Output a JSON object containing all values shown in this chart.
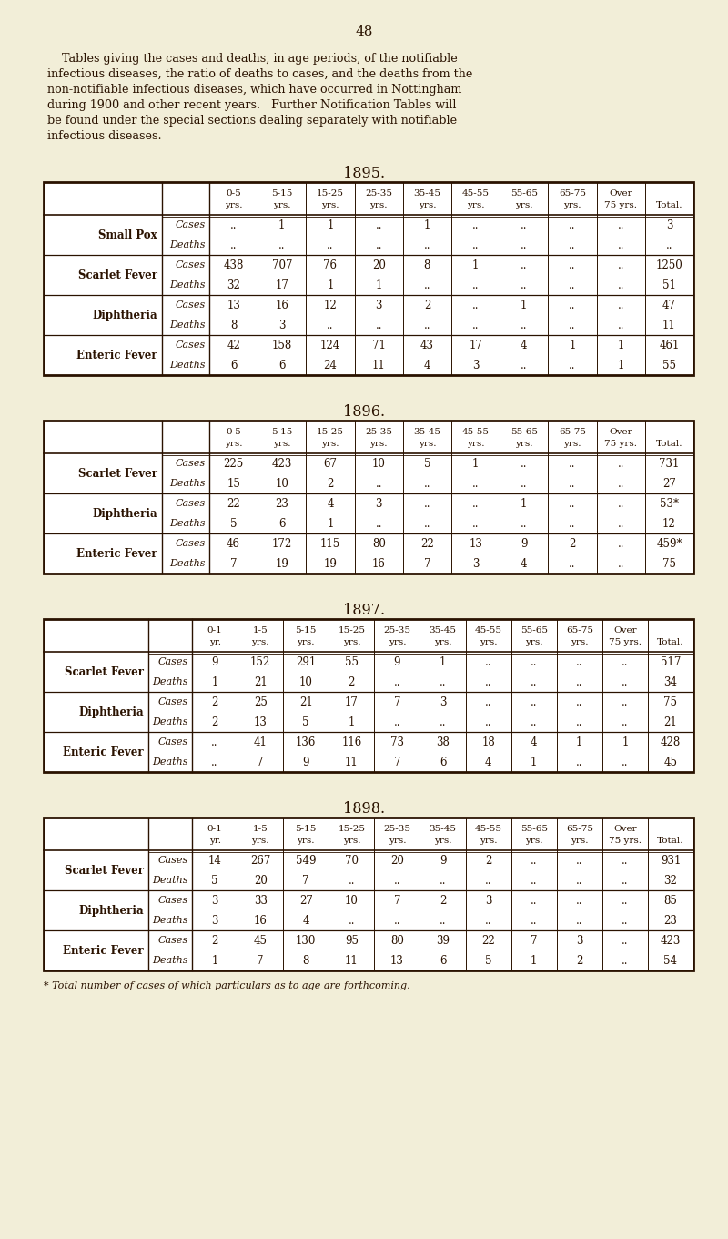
{
  "bg_color": "#f2eed8",
  "text_color": "#2a1200",
  "page_number": "48",
  "intro_text_lines": [
    "    Tables giving the cases and deaths, in age periods, of the notifiable",
    "infectious diseases, the ratio of deaths to cases, and the deaths from the",
    "non-notifiable infectious diseases, which have occurred in Nottingham",
    "during 1900 and other recent years.   Further Notification Tables will",
    "be found under the special sections dealing separately with notifiable",
    "infectious diseases."
  ],
  "tables": [
    {
      "year": "1895.",
      "col_headers_line1": [
        "0-5",
        "5-15",
        "15-25",
        "25-35",
        "35-45",
        "45-55",
        "55-65",
        "65-75",
        "Over",
        ""
      ],
      "col_headers_line2": [
        "yrs.",
        "yrs.",
        "yrs.",
        "yrs.",
        "yrs.",
        "yrs.",
        "yrs.",
        "yrs.",
        "75 yrs.",
        "Total."
      ],
      "rows": [
        [
          "Small Pox",
          "Cases",
          "..",
          "1",
          "1",
          "..",
          "1",
          "..",
          "..",
          "..",
          "..",
          "3"
        ],
        [
          "",
          "Deaths",
          "..",
          "..",
          "..",
          "..",
          "..",
          "..",
          "..",
          "..",
          "..",
          ".."
        ],
        [
          "Scarlet Fever",
          "Cases",
          "438",
          "707",
          "76",
          "20",
          "8",
          "1",
          "..",
          "..",
          "..",
          "1250"
        ],
        [
          "",
          "Deaths",
          "32",
          "17",
          "1",
          "1",
          "..",
          "..",
          "..",
          "..",
          "..",
          "51"
        ],
        [
          "Diphtheria",
          "Cases",
          "13",
          "16",
          "12",
          "3",
          "2",
          "..",
          "1",
          "..",
          "..",
          "47"
        ],
        [
          "",
          "Deaths",
          "8",
          "3",
          "..",
          "..",
          "..",
          "..",
          "..",
          "..",
          "..",
          "11"
        ],
        [
          "Enteric Fever",
          "Cases",
          "42",
          "158",
          "124",
          "71",
          "43",
          "17",
          "4",
          "1",
          "1",
          "461"
        ],
        [
          "",
          "Deaths",
          "6",
          "6",
          "24",
          "11",
          "4",
          "3",
          "..",
          "..",
          "1",
          "55"
        ]
      ],
      "n_data_cols": 10
    },
    {
      "year": "1896.",
      "col_headers_line1": [
        "0-5",
        "5-15",
        "15-25",
        "25-35",
        "35-45",
        "45-55",
        "55-65",
        "65-75",
        "Over",
        ""
      ],
      "col_headers_line2": [
        "yrs.",
        "yrs.",
        "yrs.",
        "yrs.",
        "yrs.",
        "yrs.",
        "yrs.",
        "yrs.",
        "75 yrs.",
        "Total."
      ],
      "rows": [
        [
          "Scarlet Fever",
          "Cases",
          "225",
          "423",
          "67",
          "10",
          "5",
          "1",
          "..",
          "..",
          "..",
          "731"
        ],
        [
          "",
          "Deaths",
          "15",
          "10",
          "2",
          "..",
          "..",
          "..",
          "..",
          "..",
          "..",
          "27"
        ],
        [
          "Diphtheria",
          "Cases",
          "22",
          "23",
          "4",
          "3",
          "..",
          "..",
          "1",
          "..",
          "..",
          "53*"
        ],
        [
          "",
          "Deaths",
          "5",
          "6",
          "1",
          "..",
          "..",
          "..",
          "..",
          "..",
          "..",
          "12"
        ],
        [
          "Enteric Fever",
          "Cases",
          "46",
          "172",
          "115",
          "80",
          "22",
          "13",
          "9",
          "2",
          "..",
          "459*"
        ],
        [
          "",
          "Deaths",
          "7",
          "19",
          "19",
          "16",
          "7",
          "3",
          "4",
          "..",
          "..",
          "75"
        ]
      ],
      "n_data_cols": 10
    },
    {
      "year": "1897.",
      "col_headers_line1": [
        "0-1",
        "1-5",
        "5-15",
        "15-25",
        "25-35",
        "35-45",
        "45-55",
        "55-65",
        "65-75",
        "Over",
        ""
      ],
      "col_headers_line2": [
        "yr.",
        "yrs.",
        "yrs.",
        "yrs.",
        "yrs.",
        "yrs.",
        "yrs.",
        "yrs.",
        "yrs.",
        "75 yrs.",
        "Total."
      ],
      "rows": [
        [
          "Scarlet Fever",
          "Cases",
          "9",
          "152",
          "291",
          "55",
          "9",
          "1",
          "..",
          "..",
          "..",
          "..",
          "517"
        ],
        [
          "",
          "Deaths",
          "1",
          "21",
          "10",
          "2",
          "..",
          "..",
          "..",
          "..",
          "..",
          "..",
          "34"
        ],
        [
          "Diphtheria",
          "Cases",
          "2",
          "25",
          "21",
          "17",
          "7",
          "3",
          "..",
          "..",
          "..",
          "..",
          "75"
        ],
        [
          "",
          "Deaths",
          "2",
          "13",
          "5",
          "1",
          "..",
          "..",
          "..",
          "..",
          "..",
          "..",
          "21"
        ],
        [
          "Enteric Fever",
          "Cases",
          "..",
          "41",
          "136",
          "116",
          "73",
          "38",
          "18",
          "4",
          "1",
          "1",
          "428"
        ],
        [
          "",
          "Deaths",
          "..",
          "7",
          "9",
          "11",
          "7",
          "6",
          "4",
          "1",
          "..",
          "..",
          "45"
        ]
      ],
      "n_data_cols": 11
    },
    {
      "year": "1898.",
      "col_headers_line1": [
        "0-1",
        "1-5",
        "5-15",
        "15-25",
        "25-35",
        "35-45",
        "45-55",
        "55-65",
        "65-75",
        "Over",
        ""
      ],
      "col_headers_line2": [
        "yr.",
        "yrs.",
        "yrs.",
        "yrs.",
        "yrs.",
        "yrs.",
        "yrs.",
        "yrs.",
        "yrs.",
        "75 yrs.",
        "Total."
      ],
      "rows": [
        [
          "Scarlet Fever",
          "Cases",
          "14",
          "267",
          "549",
          "70",
          "20",
          "9",
          "2",
          "..",
          "..",
          "..",
          "931"
        ],
        [
          "",
          "Deaths",
          "5",
          "20",
          "7",
          "..",
          "..",
          "..",
          "..",
          "..",
          "..",
          "..",
          "32"
        ],
        [
          "Diphtheria",
          "Cases",
          "3",
          "33",
          "27",
          "10",
          "7",
          "2",
          "3",
          "..",
          "..",
          "..",
          "85"
        ],
        [
          "",
          "Deaths",
          "3",
          "16",
          "4",
          "..",
          "..",
          "..",
          "..",
          "..",
          "..",
          "..",
          "23"
        ],
        [
          "Enteric Fever",
          "Cases",
          "2",
          "45",
          "130",
          "95",
          "80",
          "39",
          "22",
          "7",
          "3",
          "..",
          "423"
        ],
        [
          "",
          "Deaths",
          "1",
          "7",
          "8",
          "11",
          "13",
          "6",
          "5",
          "1",
          "2",
          "..",
          "54"
        ]
      ],
      "n_data_cols": 11
    }
  ],
  "footnote": "* Total number of cases of which particulars as to age are forthcoming."
}
